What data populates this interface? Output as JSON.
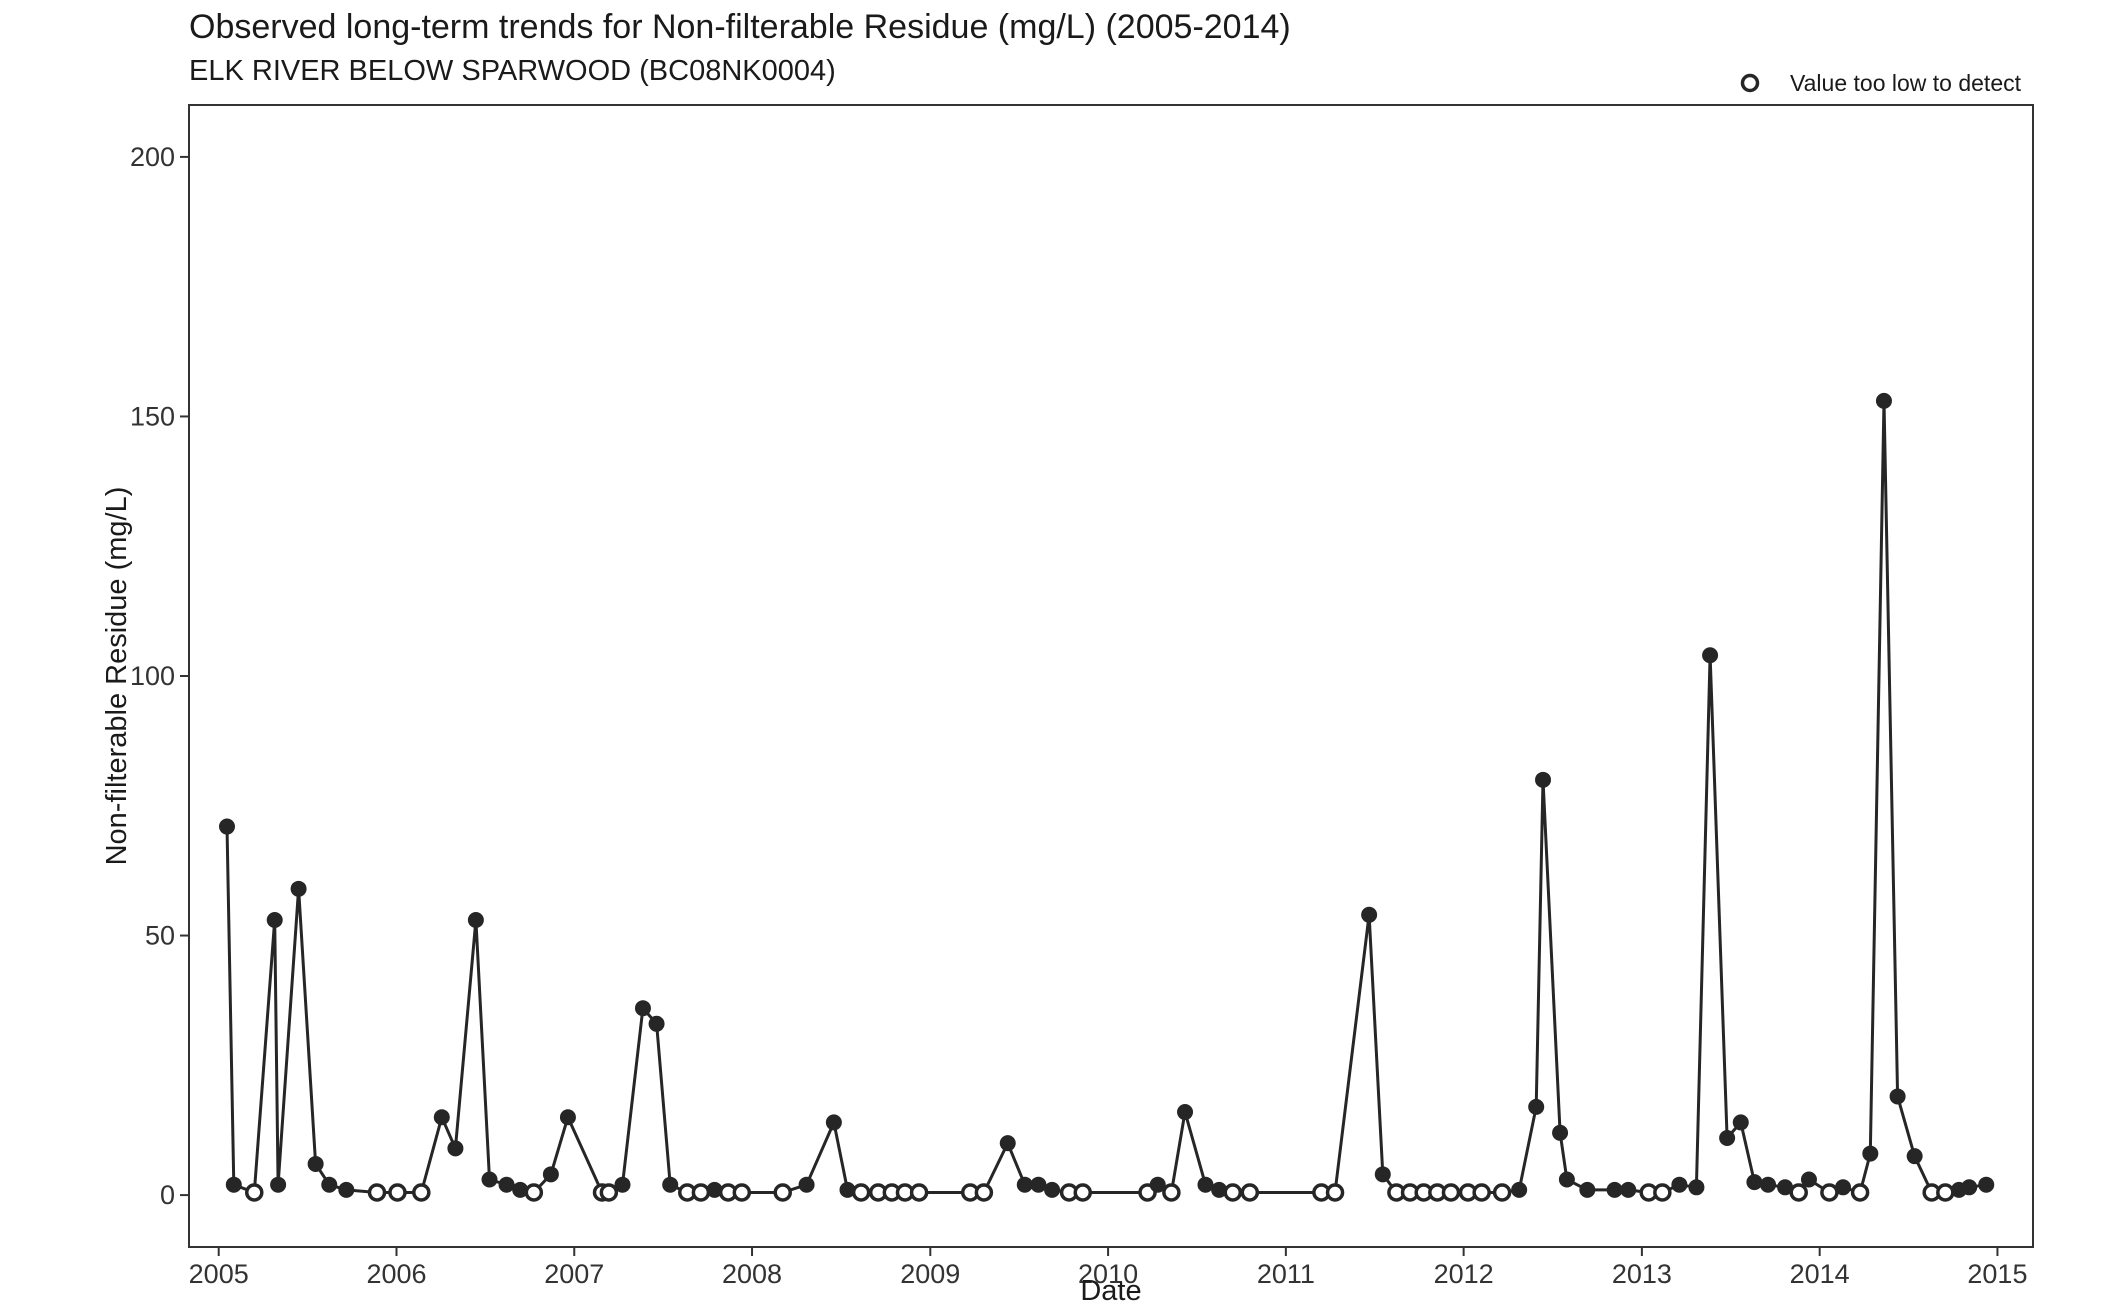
{
  "chart_data": {
    "type": "line",
    "title": "Observed long-term trends for Non-filterable Residue (mg/L) (2005-2014)",
    "subtitle": "ELK RIVER BELOW SPARWOOD (BC08NK0004)",
    "xlabel": "Date",
    "ylabel": "Non-filterable Residue (mg/L)",
    "xlim": [
      "2004-11-01",
      "2015-03-15"
    ],
    "ylim": [
      -10,
      210
    ],
    "x_ticks": [
      "2005",
      "2006",
      "2007",
      "2008",
      "2009",
      "2010",
      "2011",
      "2012",
      "2013",
      "2014",
      "2015"
    ],
    "y_ticks": [
      0,
      50,
      100,
      150,
      200
    ],
    "grid": false,
    "legend": {
      "position": "top-right",
      "entries": [
        {
          "marker": "open-circle",
          "label": "Value too low to detect"
        }
      ]
    },
    "series": [
      {
        "line_color": "#262626",
        "points": [
          {
            "x": "2005-01-18",
            "y": 71,
            "below_detection": false
          },
          {
            "x": "2005-02-01",
            "y": 2,
            "below_detection": false
          },
          {
            "x": "2005-03-15",
            "y": 0.5,
            "below_detection": true
          },
          {
            "x": "2005-04-26",
            "y": 53,
            "below_detection": false
          },
          {
            "x": "2005-05-03",
            "y": 2,
            "below_detection": false
          },
          {
            "x": "2005-06-14",
            "y": 59,
            "below_detection": false
          },
          {
            "x": "2005-07-19",
            "y": 6,
            "below_detection": false
          },
          {
            "x": "2005-08-16",
            "y": 2,
            "below_detection": false
          },
          {
            "x": "2005-09-20",
            "y": 1,
            "below_detection": false
          },
          {
            "x": "2005-11-22",
            "y": 0.5,
            "below_detection": true
          },
          {
            "x": "2006-01-03",
            "y": 0.5,
            "below_detection": true
          },
          {
            "x": "2006-02-21",
            "y": 0.5,
            "below_detection": true
          },
          {
            "x": "2006-04-04",
            "y": 15,
            "below_detection": false
          },
          {
            "x": "2006-05-02",
            "y": 9,
            "below_detection": false
          },
          {
            "x": "2006-06-13",
            "y": 53,
            "below_detection": false
          },
          {
            "x": "2006-07-11",
            "y": 3,
            "below_detection": false
          },
          {
            "x": "2006-08-15",
            "y": 2,
            "below_detection": false
          },
          {
            "x": "2006-09-12",
            "y": 1,
            "below_detection": false
          },
          {
            "x": "2006-10-10",
            "y": 0.5,
            "below_detection": true
          },
          {
            "x": "2006-11-14",
            "y": 4,
            "below_detection": false
          },
          {
            "x": "2006-12-19",
            "y": 15,
            "below_detection": false
          },
          {
            "x": "2007-02-27",
            "y": 0.5,
            "below_detection": true
          },
          {
            "x": "2007-03-13",
            "y": 0.5,
            "below_detection": true
          },
          {
            "x": "2007-04-10",
            "y": 2,
            "below_detection": false
          },
          {
            "x": "2007-05-22",
            "y": 36,
            "below_detection": false
          },
          {
            "x": "2007-06-19",
            "y": 33,
            "below_detection": false
          },
          {
            "x": "2007-07-17",
            "y": 2,
            "below_detection": false
          },
          {
            "x": "2007-08-21",
            "y": 0.5,
            "below_detection": true
          },
          {
            "x": "2007-09-18",
            "y": 0.5,
            "below_detection": true
          },
          {
            "x": "2007-10-16",
            "y": 1,
            "below_detection": false
          },
          {
            "x": "2007-11-13",
            "y": 0.5,
            "below_detection": true
          },
          {
            "x": "2007-12-11",
            "y": 0.5,
            "below_detection": true
          },
          {
            "x": "2008-03-04",
            "y": 0.5,
            "below_detection": true
          },
          {
            "x": "2008-04-22",
            "y": 2,
            "below_detection": false
          },
          {
            "x": "2008-06-17",
            "y": 14,
            "below_detection": false
          },
          {
            "x": "2008-07-15",
            "y": 1,
            "below_detection": false
          },
          {
            "x": "2008-08-12",
            "y": 0.5,
            "below_detection": true
          },
          {
            "x": "2008-09-16",
            "y": 0.5,
            "below_detection": true
          },
          {
            "x": "2008-10-14",
            "y": 0.5,
            "below_detection": true
          },
          {
            "x": "2008-11-10",
            "y": 0.5,
            "below_detection": true
          },
          {
            "x": "2008-12-09",
            "y": 0.5,
            "below_detection": true
          },
          {
            "x": "2009-03-24",
            "y": 0.5,
            "below_detection": true
          },
          {
            "x": "2009-04-21",
            "y": 0.5,
            "below_detection": true
          },
          {
            "x": "2009-06-09",
            "y": 10,
            "below_detection": false
          },
          {
            "x": "2009-07-14",
            "y": 2,
            "below_detection": false
          },
          {
            "x": "2009-08-11",
            "y": 2,
            "below_detection": false
          },
          {
            "x": "2009-09-08",
            "y": 1,
            "below_detection": false
          },
          {
            "x": "2009-10-13",
            "y": 0.5,
            "below_detection": true
          },
          {
            "x": "2009-11-10",
            "y": 0.5,
            "below_detection": true
          },
          {
            "x": "2010-03-23",
            "y": 0.5,
            "below_detection": true
          },
          {
            "x": "2010-04-13",
            "y": 2,
            "below_detection": false
          },
          {
            "x": "2010-05-11",
            "y": 0.5,
            "below_detection": true
          },
          {
            "x": "2010-06-08",
            "y": 16,
            "below_detection": false
          },
          {
            "x": "2010-07-20",
            "y": 2,
            "below_detection": false
          },
          {
            "x": "2010-08-17",
            "y": 1,
            "below_detection": false
          },
          {
            "x": "2010-09-14",
            "y": 0.5,
            "below_detection": true
          },
          {
            "x": "2010-10-19",
            "y": 0.5,
            "below_detection": true
          },
          {
            "x": "2011-03-15",
            "y": 0.5,
            "below_detection": true
          },
          {
            "x": "2011-04-12",
            "y": 0.5,
            "below_detection": true
          },
          {
            "x": "2011-06-21",
            "y": 54,
            "below_detection": false
          },
          {
            "x": "2011-07-19",
            "y": 4,
            "below_detection": false
          },
          {
            "x": "2011-08-16",
            "y": 0.5,
            "below_detection": true
          },
          {
            "x": "2011-09-13",
            "y": 0.5,
            "below_detection": true
          },
          {
            "x": "2011-10-11",
            "y": 0.5,
            "below_detection": true
          },
          {
            "x": "2011-11-08",
            "y": 0.5,
            "below_detection": true
          },
          {
            "x": "2011-12-06",
            "y": 0.5,
            "below_detection": true
          },
          {
            "x": "2012-01-10",
            "y": 0.5,
            "below_detection": true
          },
          {
            "x": "2012-02-07",
            "y": 0.5,
            "below_detection": true
          },
          {
            "x": "2012-03-20",
            "y": 0.5,
            "below_detection": true
          },
          {
            "x": "2012-04-24",
            "y": 1,
            "below_detection": false
          },
          {
            "x": "2012-05-29",
            "y": 17,
            "below_detection": false
          },
          {
            "x": "2012-06-12",
            "y": 80,
            "below_detection": false
          },
          {
            "x": "2012-07-17",
            "y": 12,
            "below_detection": false
          },
          {
            "x": "2012-07-31",
            "y": 3,
            "below_detection": false
          },
          {
            "x": "2012-09-11",
            "y": 1,
            "below_detection": false
          },
          {
            "x": "2012-11-06",
            "y": 1,
            "below_detection": false
          },
          {
            "x": "2012-12-04",
            "y": 1,
            "below_detection": false
          },
          {
            "x": "2013-01-15",
            "y": 0.5,
            "below_detection": true
          },
          {
            "x": "2013-02-12",
            "y": 0.5,
            "below_detection": true
          },
          {
            "x": "2013-03-19",
            "y": 2,
            "below_detection": false
          },
          {
            "x": "2013-04-23",
            "y": 1.5,
            "below_detection": false
          },
          {
            "x": "2013-05-21",
            "y": 104,
            "below_detection": false
          },
          {
            "x": "2013-06-25",
            "y": 11,
            "below_detection": false
          },
          {
            "x": "2013-07-23",
            "y": 14,
            "below_detection": false
          },
          {
            "x": "2013-08-20",
            "y": 2.5,
            "below_detection": false
          },
          {
            "x": "2013-09-17",
            "y": 2,
            "below_detection": false
          },
          {
            "x": "2013-10-22",
            "y": 1.5,
            "below_detection": false
          },
          {
            "x": "2013-11-19",
            "y": 0.5,
            "below_detection": true
          },
          {
            "x": "2013-12-10",
            "y": 3,
            "below_detection": false
          },
          {
            "x": "2014-01-21",
            "y": 0.5,
            "below_detection": true
          },
          {
            "x": "2014-02-18",
            "y": 1.5,
            "below_detection": false
          },
          {
            "x": "2014-03-25",
            "y": 0.5,
            "below_detection": true
          },
          {
            "x": "2014-04-15",
            "y": 8,
            "below_detection": false
          },
          {
            "x": "2014-05-13",
            "y": 153,
            "below_detection": false
          },
          {
            "x": "2014-06-10",
            "y": 19,
            "below_detection": false
          },
          {
            "x": "2014-07-15",
            "y": 7.5,
            "below_detection": false
          },
          {
            "x": "2014-08-19",
            "y": 0.5,
            "below_detection": true
          },
          {
            "x": "2014-09-16",
            "y": 0.5,
            "below_detection": true
          },
          {
            "x": "2014-10-14",
            "y": 1,
            "below_detection": false
          },
          {
            "x": "2014-11-04",
            "y": 1.5,
            "below_detection": false
          },
          {
            "x": "2014-12-09",
            "y": 2,
            "below_detection": false
          }
        ]
      }
    ]
  }
}
